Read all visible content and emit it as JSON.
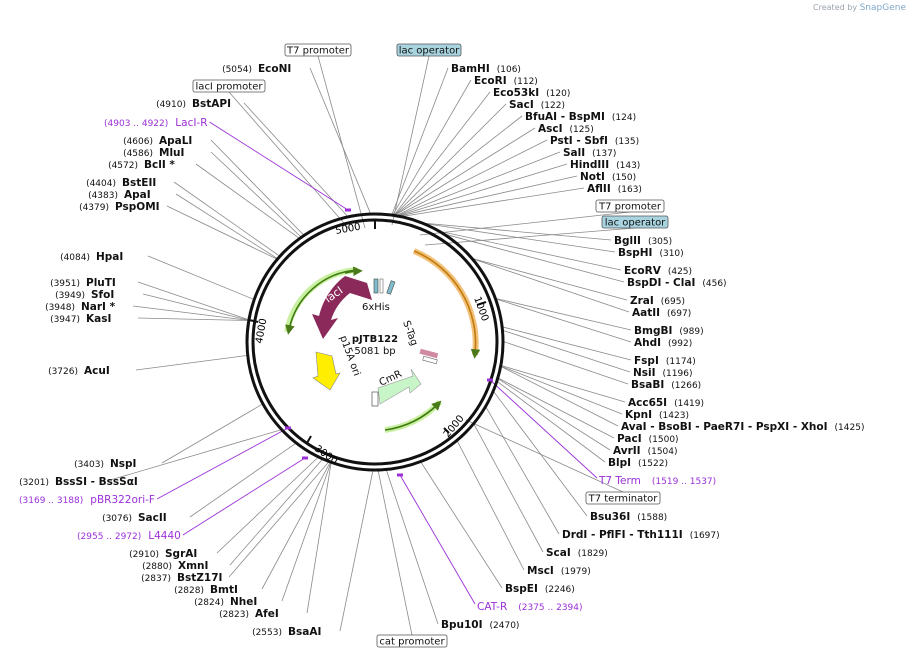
{
  "credit": {
    "prefix": "Created by",
    "brand": "SnapGene"
  },
  "plasmid": {
    "name": "pJTB122",
    "size": "5081 bp",
    "length": 5081
  },
  "ticks": [
    "1000",
    "2000",
    "3000",
    "4000",
    "5000"
  ],
  "features": [
    {
      "label": "lacI",
      "kind": "cds",
      "color": "#8b2a5a"
    },
    {
      "label": "p15A ori",
      "kind": "ori",
      "color": "#ffee00"
    },
    {
      "label": "CmR",
      "kind": "cds",
      "color": "#c8f5c8"
    },
    {
      "label": "S-Tag",
      "kind": "tag",
      "color": "#d08aa0"
    },
    {
      "label": "6xHis",
      "kind": "tag",
      "color": "#7fbccc"
    }
  ],
  "sites": [
    {
      "name": "EcoNI",
      "pos": "(5054)"
    },
    {
      "name": "BstAPI",
      "pos": "(4910)"
    },
    {
      "name": "ApaLI",
      "pos": "(4606)"
    },
    {
      "name": "MluI",
      "pos": "(4586)"
    },
    {
      "name": "BclI *",
      "pos": "(4572)"
    },
    {
      "name": "BstEII",
      "pos": "(4404)"
    },
    {
      "name": "ApaI",
      "pos": "(4383)"
    },
    {
      "name": "PspOMI",
      "pos": "(4379)"
    },
    {
      "name": "HpaI",
      "pos": "(4084)"
    },
    {
      "name": "PluTI",
      "pos": "(3951)"
    },
    {
      "name": "SfoI",
      "pos": "(3949)"
    },
    {
      "name": "NarI *",
      "pos": "(3948)"
    },
    {
      "name": "KasI",
      "pos": "(3947)"
    },
    {
      "name": "AcuI",
      "pos": "(3726)"
    },
    {
      "name": "NspI",
      "pos": "(3403)"
    },
    {
      "name": "BssSI - BssSαI",
      "pos": "(3201)"
    },
    {
      "name": "SacII",
      "pos": "(3076)"
    },
    {
      "name": "SgrAI",
      "pos": "(2910)"
    },
    {
      "name": "XmnI",
      "pos": "(2880)"
    },
    {
      "name": "BstZ17I",
      "pos": "(2837)"
    },
    {
      "name": "BmtI",
      "pos": "(2828)"
    },
    {
      "name": "NheI",
      "pos": "(2824)"
    },
    {
      "name": "AfeI",
      "pos": "(2823)"
    },
    {
      "name": "BsaAI",
      "pos": "(2553)"
    },
    {
      "name": "Bpu10I",
      "pos": "(2470)"
    },
    {
      "name": "BspEI",
      "pos": "(2246)"
    },
    {
      "name": "MscI",
      "pos": "(1979)"
    },
    {
      "name": "ScaI",
      "pos": "(1829)"
    },
    {
      "name": "DrdI - PflFI - Tth111I",
      "pos": "(1697)"
    },
    {
      "name": "Bsu36I",
      "pos": "(1588)"
    },
    {
      "name": "BlpI",
      "pos": "(1522)"
    },
    {
      "name": "AvrII",
      "pos": "(1504)"
    },
    {
      "name": "PacI",
      "pos": "(1500)"
    },
    {
      "name": "AvaI - BsoBI - PaeR7I - PspXI - XhoI",
      "pos": "(1425)"
    },
    {
      "name": "KpnI",
      "pos": "(1423)"
    },
    {
      "name": "Acc65I",
      "pos": "(1419)"
    },
    {
      "name": "BsaBI",
      "pos": "(1266)"
    },
    {
      "name": "NsiI",
      "pos": "(1196)"
    },
    {
      "name": "FspI",
      "pos": "(1174)"
    },
    {
      "name": "AhdI",
      "pos": "(992)"
    },
    {
      "name": "BmgBI",
      "pos": "(989)"
    },
    {
      "name": "AatII",
      "pos": "(697)"
    },
    {
      "name": "ZraI",
      "pos": "(695)"
    },
    {
      "name": "BspDI - ClaI",
      "pos": "(456)"
    },
    {
      "name": "EcoRV",
      "pos": "(425)"
    },
    {
      "name": "BspHI",
      "pos": "(310)"
    },
    {
      "name": "BglII",
      "pos": "(305)"
    },
    {
      "name": "AflII",
      "pos": "(163)"
    },
    {
      "name": "NotI",
      "pos": "(150)"
    },
    {
      "name": "HindIII",
      "pos": "(143)"
    },
    {
      "name": "SalI",
      "pos": "(137)"
    },
    {
      "name": "PstI - SbfI",
      "pos": "(135)"
    },
    {
      "name": "AscI",
      "pos": "(125)"
    },
    {
      "name": "BfuAI - BspMI",
      "pos": "(124)"
    },
    {
      "name": "SacI",
      "pos": "(122)"
    },
    {
      "name": "Eco53kI",
      "pos": "(120)"
    },
    {
      "name": "EcoRI",
      "pos": "(112)"
    },
    {
      "name": "BamHI",
      "pos": "(106)"
    }
  ],
  "boxes": [
    {
      "label": "T7 promoter",
      "style": "plain"
    },
    {
      "label": "lac operator",
      "style": "blue"
    },
    {
      "label": "lacI promoter",
      "style": "plain"
    },
    {
      "label": "T7 promoter",
      "style": "plain"
    },
    {
      "label": "lac operator",
      "style": "blue"
    },
    {
      "label": "T7 terminator",
      "style": "plain"
    },
    {
      "label": "cat promoter",
      "style": "plain"
    }
  ],
  "primers": [
    {
      "name": "LacI-R",
      "range": "(4903 .. 4922)"
    },
    {
      "name": "T7 Term",
      "range": "(1519 .. 1537)"
    },
    {
      "name": "pBR322ori-F",
      "range": "(3169 .. 3188)"
    },
    {
      "name": "L4440",
      "range": "(2955 .. 2972)"
    },
    {
      "name": "CAT-R",
      "range": "(2375 .. 2394)"
    }
  ],
  "colors": {
    "primer": "#9b30d8",
    "site": "#000000",
    "line": "#8a8a8a",
    "operator": "#a8d4e0"
  }
}
